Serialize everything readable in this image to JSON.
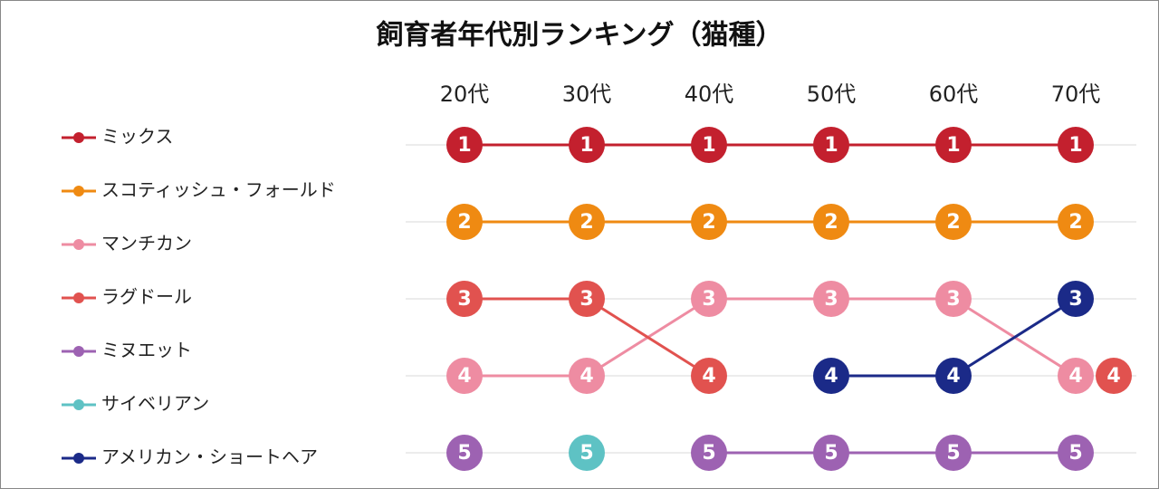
{
  "chart_data": {
    "type": "line",
    "title": "飼育者年代別ランキング（猫種）",
    "categories": [
      "20代",
      "30代",
      "40代",
      "50代",
      "60代",
      "70代"
    ],
    "series": [
      {
        "name": "ミックス",
        "color": "#c3202e",
        "values": [
          1,
          1,
          1,
          1,
          1,
          1
        ]
      },
      {
        "name": "スコティッシュ・フォールド",
        "color": "#ef8a12",
        "values": [
          2,
          2,
          2,
          2,
          2,
          2
        ]
      },
      {
        "name": "マンチカン",
        "color": "#ee8ca2",
        "values": [
          4,
          4,
          3,
          3,
          3,
          4
        ]
      },
      {
        "name": "ラグドール",
        "color": "#e1524f",
        "values": [
          3,
          3,
          4,
          null,
          null,
          4
        ]
      },
      {
        "name": "ミヌエット",
        "color": "#9d62b2",
        "values": [
          5,
          null,
          5,
          5,
          5,
          5
        ]
      },
      {
        "name": "サイベリアン",
        "color": "#5ec2c4",
        "values": [
          null,
          5,
          null,
          null,
          null,
          null
        ]
      },
      {
        "name": "アメリカン・ショートヘア",
        "color": "#1b2a88",
        "values": [
          null,
          null,
          null,
          4,
          4,
          3
        ]
      }
    ],
    "ylim": [
      1,
      5
    ],
    "y_inverted": true,
    "yticks": [
      1,
      2,
      3,
      4,
      5
    ],
    "grid": true,
    "legend": "left"
  }
}
